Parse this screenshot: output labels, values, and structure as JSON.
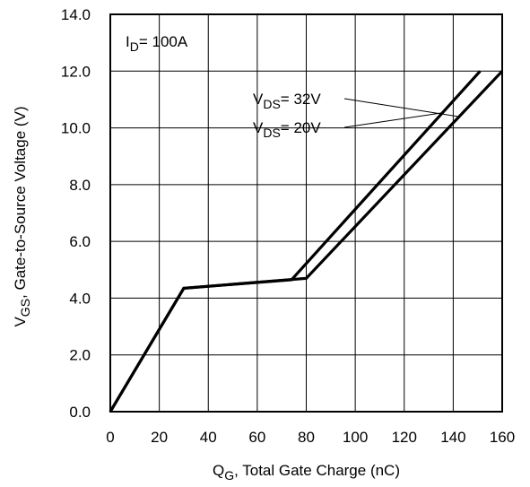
{
  "chart_data": {
    "type": "line",
    "title": "",
    "xlabel": {
      "main": "Q",
      "sub": "G",
      "rest": ",  Total Gate Charge (nC)"
    },
    "ylabel": {
      "main": "V",
      "sub": "GS",
      "rest": ", Gate-to-Source Voltage (V)"
    },
    "xlim": [
      0,
      160
    ],
    "ylim": [
      0,
      14
    ],
    "xticks": [
      0,
      20,
      40,
      60,
      80,
      100,
      120,
      140,
      160
    ],
    "yticks": [
      "0.0",
      "2.0",
      "4.0",
      "6.0",
      "8.0",
      "10.0",
      "12.0",
      "14.0"
    ],
    "grid": true,
    "series": [
      {
        "name": "VDS= 32V",
        "label": {
          "main": "V",
          "sub": "DS",
          "rest": "= 32V"
        },
        "points": [
          [
            0,
            0
          ],
          [
            30,
            4.35
          ],
          [
            80,
            4.7
          ],
          [
            160,
            12.0
          ]
        ]
      },
      {
        "name": "VDS= 20V",
        "label": {
          "main": "V",
          "sub": "DS",
          "rest": "= 20V"
        },
        "points": [
          [
            0,
            0
          ],
          [
            30,
            4.35
          ],
          [
            74,
            4.65
          ],
          [
            151,
            12.0
          ]
        ]
      }
    ],
    "annotation": {
      "main": "I",
      "sub": "D",
      "rest": "= 100A"
    }
  }
}
